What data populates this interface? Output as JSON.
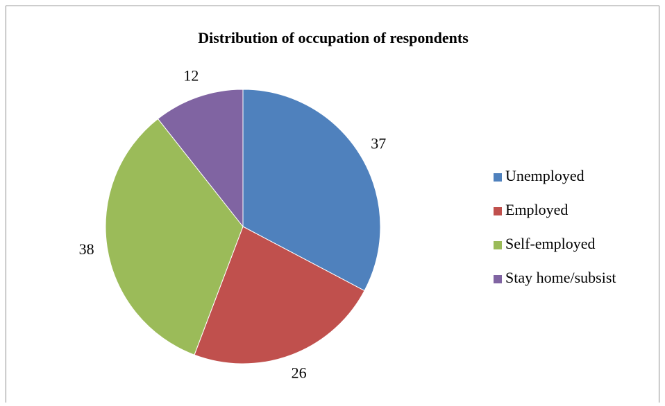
{
  "chart_data": {
    "type": "pie",
    "title": "Distribution of occupation of respondents",
    "categories": [
      "Unemployed",
      "Employed",
      "Self-employed",
      "Stay home/subsist"
    ],
    "values": [
      37,
      26,
      38,
      12
    ],
    "colors": [
      "#4f81bd",
      "#c0504d",
      "#9bbb59",
      "#8064a2"
    ],
    "legend": "right"
  }
}
